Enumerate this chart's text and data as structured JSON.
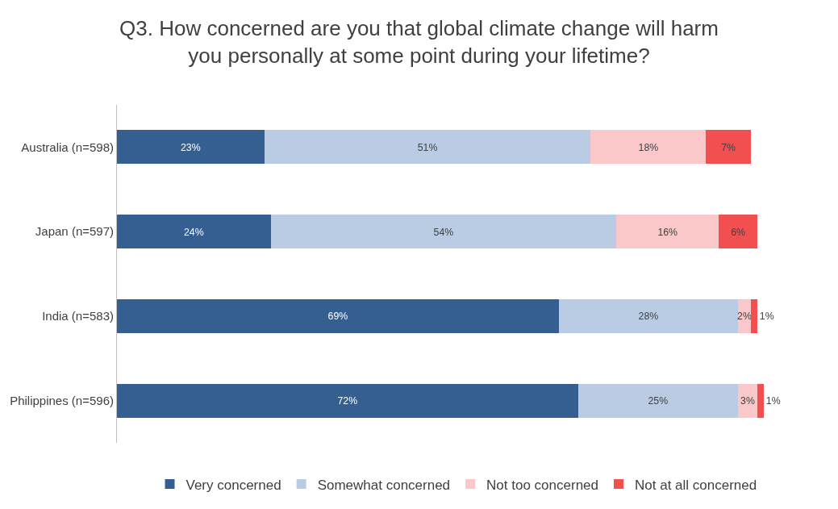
{
  "chart_data": {
    "type": "bar",
    "orientation": "horizontal",
    "stacked": true,
    "legend": "bottom",
    "title": "Q3. How concerned are you that global climate change will harm you personally at some point during your lifetime?",
    "categories": [
      "Australia (n=598)",
      "Japan (n=597)",
      "India (n=583)",
      "Philippines (n=596)"
    ],
    "series": [
      {
        "name": "Very concerned",
        "color": "#365f91",
        "values": [
          23,
          24,
          69,
          72
        ],
        "value_labels": [
          "23%",
          "24%",
          "69%",
          "72%"
        ]
      },
      {
        "name": "Somewhat concerned",
        "color": "#b9cce4",
        "values": [
          51,
          54,
          28,
          25
        ],
        "value_labels": [
          "51%",
          "54%",
          "28%",
          "25%"
        ]
      },
      {
        "name": "Not too concerned",
        "color": "#fac8c8",
        "values": [
          18,
          16,
          2,
          3
        ],
        "value_labels": [
          "18%",
          "16%",
          "2%",
          "3%"
        ]
      },
      {
        "name": "Not at all concerned",
        "color": "#f25050",
        "values": [
          7,
          6,
          1,
          1
        ],
        "value_labels": [
          "7%",
          "6%",
          "1%",
          "1%"
        ]
      }
    ]
  }
}
